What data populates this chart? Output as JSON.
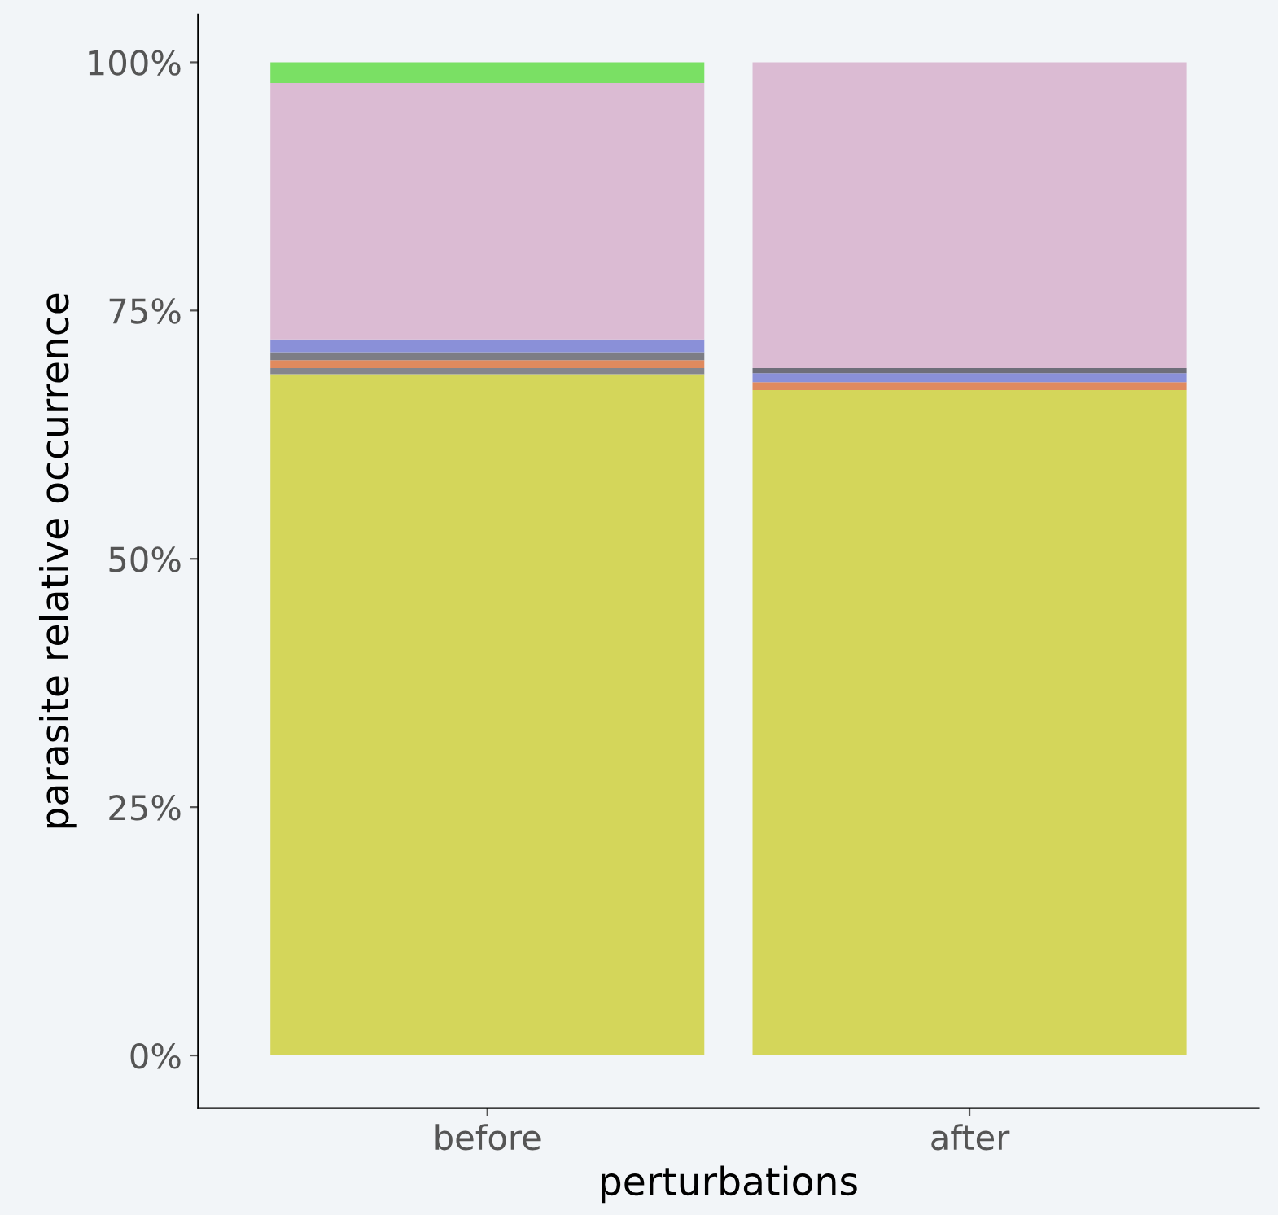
{
  "chart_data": {
    "type": "bar",
    "stacked": true,
    "xlabel": "perturbations",
    "ylabel": "parasite relative occurrence",
    "categories": [
      "before",
      "after"
    ],
    "series": [
      {
        "color": "#d4d65a",
        "values": [
          68.6,
          67.0
        ]
      },
      {
        "color": "#85858c",
        "values": [
          0.6,
          null
        ]
      },
      {
        "color": "#e08a5e",
        "values": [
          0.8,
          0.8
        ]
      },
      {
        "color": "#7d7d85",
        "values": [
          0.8,
          null
        ]
      },
      {
        "color": "#8a90d8",
        "values": [
          1.3,
          0.9
        ]
      },
      {
        "color": "#6e6e7a",
        "values": [
          null,
          0.5
        ]
      },
      {
        "color": "#dbbbd3",
        "values": [
          25.8,
          30.8
        ]
      },
      {
        "color": "#7ae064",
        "values": [
          2.1,
          null
        ]
      }
    ],
    "ylim": [
      -5.3,
      104.8
    ],
    "yticks": [
      {
        "value": 0,
        "label": "0%"
      },
      {
        "value": 25,
        "label": "25%"
      },
      {
        "value": 50,
        "label": "50%"
      },
      {
        "value": 75,
        "label": "75%"
      },
      {
        "value": 100,
        "label": "100%"
      }
    ],
    "grid": false,
    "legend": false
  }
}
